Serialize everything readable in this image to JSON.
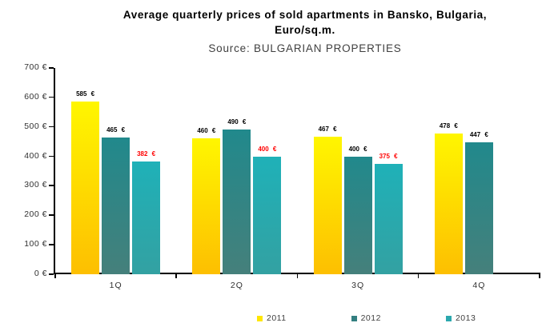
{
  "header": {
    "title_line1": "Average quarterly prices of sold apartments in Bansko, Bulgaria,",
    "title_line2": "Euro/sq.m.",
    "source": "Source: BULGARIAN PROPERTIES"
  },
  "chart_data": {
    "type": "bar",
    "title": "Average quarterly prices of sold apartments in Bansko, Bulgaria, Euro/sq.m.",
    "subtitle": "Source: BULGARIAN PROPERTIES",
    "categories": [
      "1Q",
      "2Q",
      "3Q",
      "4Q"
    ],
    "series": [
      {
        "name": "2011",
        "values": [
          585,
          460,
          467,
          478
        ],
        "labels": [
          "585 €",
          "460 €",
          "467 €",
          "478 €"
        ],
        "label_color": "#000000",
        "color_top": "#fff600",
        "color_bottom": "#fdbf01",
        "legend_color": "#ffe600"
      },
      {
        "name": "2012",
        "values": [
          465,
          490,
          400,
          447
        ],
        "labels": [
          "465 €",
          "490 €",
          "400 €",
          "447 €"
        ],
        "label_color": "#000000",
        "color_top": "#21898c",
        "color_bottom": "#45807b",
        "legend_color": "#337f80"
      },
      {
        "name": "2013",
        "values": [
          382,
          400,
          375,
          null
        ],
        "labels": [
          "382 €",
          "400 €",
          "375 €",
          null
        ],
        "label_color": "#ff0000",
        "color_top": "#1fb1b8",
        "color_bottom": "#33a1a2",
        "legend_color": "#2ba8ae"
      }
    ],
    "ylim": [
      0,
      700
    ],
    "ytick_step": 100,
    "ytick_labels": [
      "0 €",
      "100 €",
      "200 €",
      "300 €",
      "400 €",
      "500 €",
      "600 €",
      "700 €"
    ],
    "grid": false,
    "legend_position": "bottom"
  }
}
